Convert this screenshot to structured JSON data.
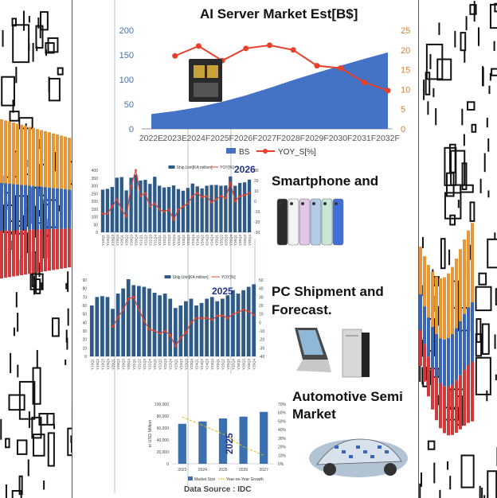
{
  "colors": {
    "bar_dark": "#2e5a88",
    "area_blue": "#4472c4",
    "yoy_red": "#e8402a",
    "yoy_gold": "#e6b800",
    "axis_orange": "#d0823a",
    "side_red": "#d03a3a",
    "side_blue": "#3a67b5",
    "side_orange": "#e6973a"
  },
  "titles": {
    "ai_server": "AI Server Market Est[B$]",
    "smartphone": "Smartphone and",
    "pc_line1": "PC Shipment and",
    "pc_line2": "Forecast.",
    "auto_line1": "Automotive Semi",
    "auto_line2": "Market"
  },
  "source": "Data Source : IDC",
  "icons": [
    "server-chip-image",
    "smartphones-image",
    "laptop-image",
    "desktop-tower-image",
    "car-electronics-image"
  ],
  "chart_data": [
    {
      "type": "area",
      "title": "AI Server Market Est[B$]",
      "categories": [
        "2022E",
        "2023E",
        "2024F",
        "2025F",
        "2026F",
        "2027F",
        "2028F",
        "2029F",
        "2030F",
        "2031F",
        "2032F"
      ],
      "series": [
        {
          "name": "BS",
          "type": "area",
          "axis": "left",
          "values": [
            30,
            36,
            44,
            55,
            68,
            83,
            99,
            114,
            128,
            142,
            155
          ]
        },
        {
          "name": "YOY_S[%]",
          "type": "line",
          "axis": "right",
          "values": [
            null,
            18.5,
            21,
            17.3,
            20.4,
            21.2,
            20,
            16,
            15.4,
            11.8,
            9.7
          ]
        }
      ],
      "ylim_left": [
        0,
        200
      ],
      "yticks_left": [
        0,
        50,
        100,
        150,
        200
      ],
      "ylim_right": [
        0,
        25
      ],
      "yticks_right": [
        0,
        5,
        10,
        15,
        20,
        25
      ],
      "legend": "bottom"
    },
    {
      "type": "bar",
      "categories": [
        "Y19Q1",
        "Y19Q2",
        "Y19Q3",
        "Y19Q4",
        "Y20Q1",
        "Y20Q2",
        "Y20Q3",
        "Y20Q4",
        "Y21Q1",
        "Y21Q2",
        "Y21Q3",
        "Y21Q4",
        "Y22Q1",
        "Y22Q2",
        "Y22Q3",
        "Y22Q4",
        "Y23Q1",
        "Y23Q2",
        "Y23Q3",
        "Y23Q4",
        "Y24Q1",
        "Y24Q2",
        "Y24Q3",
        "Y24Q4",
        "Y25Q1",
        "Y25Q2",
        "Y25Q3",
        "Y25Q4",
        "Y26Q1",
        "Y26Q2",
        "Y26Q3",
        "Y26Q4"
      ],
      "series": [
        {
          "name": "Ship.Unit[KA million]",
          "type": "bar",
          "axis": "left",
          "values": [
            275,
            280,
            292,
            352,
            356,
            270,
            352,
            372,
            334,
            338,
            312,
            358,
            300,
            289,
            292,
            302,
            279,
            268,
            286,
            314,
            296,
            283,
            300,
            305,
            305,
            300,
            302,
            360,
            300,
            318,
            322,
            340
          ]
        },
        {
          "name": "YOY[%]",
          "type": "line",
          "axis": "right",
          "values": [
            -12,
            -12,
            -5,
            2,
            -8,
            -15,
            15,
            30,
            5,
            8,
            -5,
            -2,
            -8,
            -10,
            -8,
            -18,
            -8,
            -5,
            -2,
            5,
            8,
            4,
            5,
            -1,
            2,
            5,
            3,
            18,
            0,
            5,
            6,
            8
          ]
        }
      ],
      "ylim_left": [
        0,
        400
      ],
      "yticks_left": [
        0,
        50,
        100,
        150,
        200,
        250,
        300,
        350,
        400
      ],
      "ylim_right": [
        -30,
        30
      ],
      "yticks_right": [
        -30,
        -20,
        -10,
        0,
        10,
        20,
        30
      ],
      "annotation": "2026"
    },
    {
      "type": "bar",
      "categories": [
        "Y19Q1",
        "Y19Q2",
        "Y19Q3",
        "Y19Q4",
        "Y20Q1",
        "Y20Q2",
        "Y20Q3",
        "Y20Q4",
        "Y21Q1",
        "Y21Q2",
        "Y21Q3",
        "Y21Q4",
        "Y22Q1",
        "Y22Q2",
        "Y22Q3",
        "Y22Q4",
        "Y23Q1",
        "Y23Q2",
        "Y23Q3",
        "Y23Q4",
        "Y24Q1",
        "Y24Q2",
        "Y24Q3",
        "Y24Q4",
        "Y25Q1",
        "Y25Q2",
        "Y25Q3",
        "Y25Q4",
        "Y26Q1",
        "Y26Q2",
        "Y26Q3",
        "Y26Q4"
      ],
      "series": [
        {
          "name": "Ship.Unit[KA million]",
          "type": "bar",
          "axis": "left",
          "values": [
            60,
            70,
            71,
            70,
            56,
            74,
            80,
            91,
            84,
            83,
            82,
            80,
            75,
            72,
            74,
            68,
            57,
            60,
            65,
            68,
            60,
            63,
            68,
            70,
            65,
            68,
            72,
            78,
            74,
            78,
            82,
            85
          ]
        },
        {
          "name": "YOY[%]",
          "type": "line",
          "axis": "right",
          "values": [
            null,
            null,
            null,
            null,
            -5,
            6,
            15,
            28,
            30,
            15,
            2,
            -8,
            -10,
            -13,
            -10,
            -15,
            -28,
            -18,
            -12,
            0,
            5,
            5,
            5,
            3,
            8,
            8,
            5,
            10,
            12,
            15,
            13,
            9
          ]
        }
      ],
      "ylim_left": [
        0,
        90
      ],
      "yticks_left": [
        0,
        10,
        20,
        30,
        40,
        50,
        60,
        70,
        80,
        90
      ],
      "ylim_right": [
        -40,
        50
      ],
      "yticks_right": [
        -40,
        -30,
        -20,
        -10,
        0,
        10,
        20,
        30,
        40,
        50
      ],
      "annotation": "2025"
    },
    {
      "type": "bar",
      "categories": [
        "2023",
        "2024",
        "2025",
        "2026",
        "2027"
      ],
      "series": [
        {
          "name": "Market Size",
          "type": "bar",
          "axis": "left",
          "values": [
            67000,
            71000,
            76000,
            79000,
            87000
          ]
        },
        {
          "name": "Year-on-Year Growth",
          "type": "line",
          "axis": "right",
          "values": [
            55,
            45,
            35,
            20,
            10
          ]
        }
      ],
      "ylabel": "in USD Million",
      "ylim_left": [
        0,
        100000
      ],
      "yticks_left": [
        "0",
        "20,000",
        "40,000",
        "60,000",
        "80,000",
        "100,000"
      ],
      "ylim_right": [
        0,
        70
      ],
      "yticks_right": [
        "0%",
        "10%",
        "20%",
        "30%",
        "40%",
        "50%",
        "60%",
        "70%"
      ],
      "annotation": "2025"
    }
  ]
}
